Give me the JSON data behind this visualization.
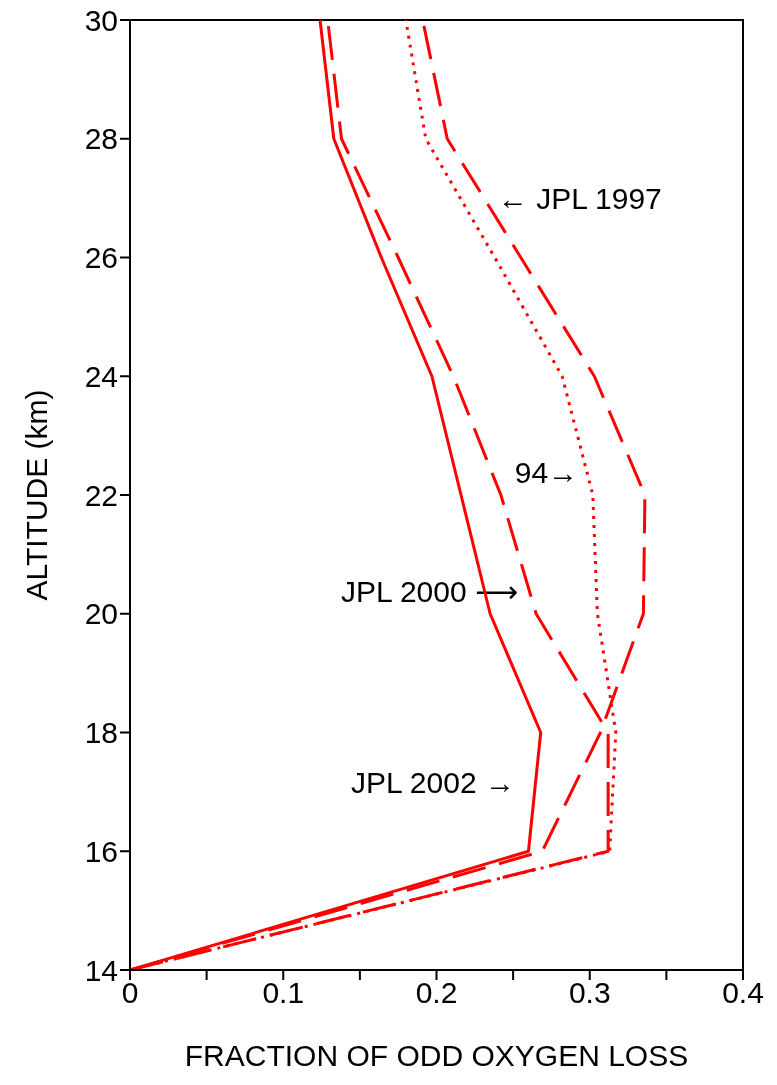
{
  "chart_data": {
    "type": "line",
    "orientation": "horizontal",
    "xlabel": "FRACTION OF ODD OXYGEN LOSS",
    "ylabel": "ALTITUDE (km)",
    "x": [
      14,
      16,
      18,
      20,
      22,
      24,
      26,
      28,
      30
    ],
    "series": [
      {
        "color": "#ff0000",
        "line_style": "solid",
        "values": [
          0,
          0.26,
          0.268,
          0.235,
          0.216,
          0.197,
          0.164,
          0.133,
          0.124
        ]
      },
      {
        "color": "#ff0000",
        "line_style": "dashed",
        "values": [
          0,
          0.312,
          0.312,
          0.265,
          0.242,
          0.211,
          0.175,
          0.138,
          0.129
        ]
      },
      {
        "color": "#ff0000",
        "line_style": "dotted",
        "values": [
          0,
          0.313,
          0.317,
          0.305,
          0.302,
          0.282,
          0.238,
          0.193,
          0.18
        ]
      },
      {
        "color": "#ff0000",
        "line_style": "dashed",
        "values": [
          0,
          0.269,
          0.307,
          0.335,
          0.336,
          0.303,
          0.255,
          0.207,
          0.191
        ]
      }
    ],
    "xlim": [
      0,
      0.4
    ],
    "xticks": [
      0,
      {
        "value": 0.05,
        "label": null
      },
      0.1,
      {
        "value": 0.15,
        "label": null
      },
      0.2,
      {
        "value": 0.25,
        "label": null
      },
      0.3,
      {
        "value": 0.35,
        "label": null
      },
      0.4
    ],
    "ylim": [
      14,
      30
    ],
    "yticks": [
      14,
      16,
      18,
      20,
      22,
      24,
      26,
      28,
      30
    ],
    "grid": false,
    "legend": false,
    "marker": "none",
    "annotations": [
      "← JPL 1997",
      "94→",
      "JPL 2000 ⟶",
      "JPL 2002 →"
    ]
  }
}
